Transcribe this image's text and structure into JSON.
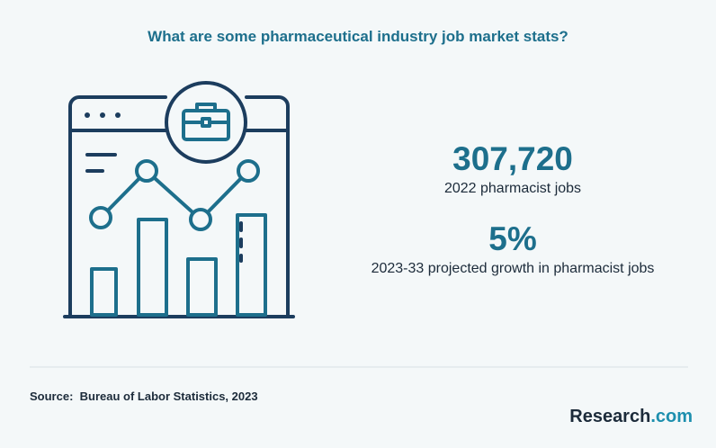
{
  "header": {
    "title": "What are some pharmaceutical industry job market stats?"
  },
  "stats": [
    {
      "value": "307,720",
      "label": "2022 pharmacist jobs"
    },
    {
      "value": "5%",
      "label": "2023-33 projected growth in pharmacist jobs"
    }
  ],
  "footer": {
    "source": "Source:  Bureau of Labor Statistics, 2023",
    "logo": {
      "name": "Research",
      "suffix": ".com"
    }
  }
}
